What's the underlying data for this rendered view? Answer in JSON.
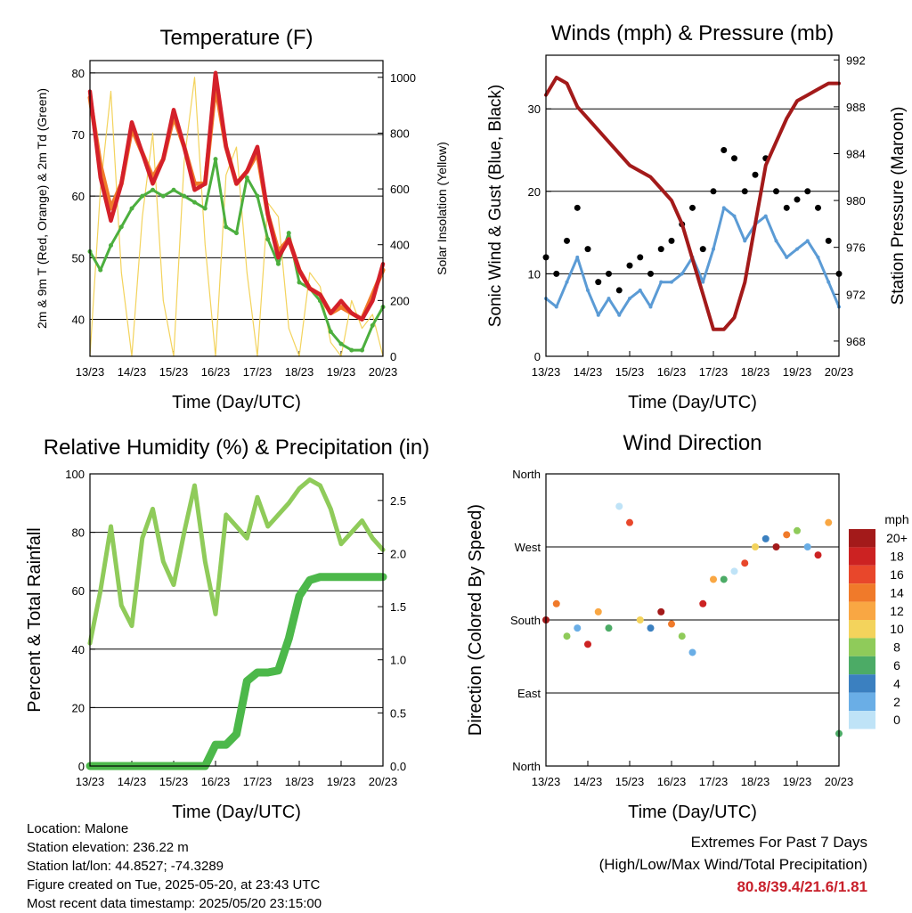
{
  "x_ticks": [
    "13/23",
    "14/23",
    "15/23",
    "16/23",
    "17/23",
    "18/23",
    "19/23",
    "20/23"
  ],
  "x_label": "Time (Day/UTC)",
  "chart_data": [
    {
      "type": "line",
      "title": "Temperature (F)",
      "xlabel": "Time (Day/UTC)",
      "ylabel": "2m & 9m T (Red, Orange) & 2m Td (Green)",
      "ylabel_right": "Solar Insolation (Yellow)",
      "ylim": [
        34,
        82
      ],
      "ylim_right": [
        0,
        1060
      ],
      "yticks": [
        40,
        50,
        60,
        70,
        80
      ],
      "yticks_right": [
        0,
        200,
        400,
        600,
        800,
        1000
      ],
      "x": [
        0,
        0.25,
        0.5,
        0.75,
        1,
        1.25,
        1.5,
        1.75,
        2,
        2.25,
        2.5,
        2.75,
        3,
        3.25,
        3.5,
        3.75,
        4,
        4.25,
        4.5,
        4.75,
        5,
        5.25,
        5.5,
        5.75,
        6,
        6.25,
        6.5,
        6.75,
        7
      ],
      "series": [
        {
          "color": "#d4202a",
          "values": [
            77,
            63,
            56,
            62,
            72,
            67,
            62,
            66,
            74,
            68,
            61,
            62,
            80,
            68,
            62,
            64,
            68,
            57,
            50,
            53,
            48,
            45,
            44,
            41,
            43,
            41,
            40,
            43,
            49
          ]
        },
        {
          "color": "#f07a2a",
          "values": [
            76,
            65,
            58,
            62,
            71,
            67,
            63,
            66,
            73,
            68,
            62,
            62,
            78,
            68,
            62,
            64,
            67,
            57,
            51,
            53,
            48,
            45,
            44,
            41,
            42,
            41,
            40,
            44,
            48
          ]
        },
        {
          "color": "#4caf3e",
          "values": [
            51,
            48,
            52,
            55,
            58,
            60,
            61,
            60,
            61,
            60,
            59,
            58,
            66,
            55,
            54,
            63,
            60,
            53,
            49,
            54,
            46,
            45,
            43,
            38,
            36,
            35,
            35,
            39,
            42
          ]
        },
        {
          "color": "#f3d35c",
          "values": [
            0,
            600,
            950,
            300,
            0,
            500,
            800,
            200,
            0,
            700,
            1000,
            400,
            0,
            650,
            750,
            300,
            0,
            550,
            500,
            100,
            0,
            300,
            250,
            50,
            0,
            200,
            100,
            150,
            0
          ]
        }
      ]
    },
    {
      "type": "scatter",
      "title": "Winds (mph) & Pressure (mb)",
      "xlabel": "Time (Day/UTC)",
      "ylabel": "Sonic Wind & Gust (Blue, Black)",
      "ylabel_right": "Station Pressure (Maroon)",
      "ylim": [
        0,
        36.5
      ],
      "ylim_right": [
        966.7,
        992.4
      ],
      "yticks": [
        0,
        10,
        20,
        30
      ],
      "yticks_right": [
        968,
        972,
        976,
        980,
        984,
        988,
        992
      ],
      "x": [
        0,
        0.25,
        0.5,
        0.75,
        1,
        1.25,
        1.5,
        1.75,
        2,
        2.25,
        2.5,
        2.75,
        3,
        3.25,
        3.5,
        3.75,
        4,
        4.25,
        4.5,
        4.75,
        5,
        5.25,
        5.5,
        5.75,
        6,
        6.25,
        6.5,
        6.75,
        7
      ],
      "series": [
        {
          "color": "#000000",
          "values": [
            12,
            10,
            14,
            18,
            13,
            9,
            10,
            8,
            11,
            12,
            10,
            13,
            14,
            16,
            18,
            13,
            20,
            25,
            24,
            20,
            22,
            24,
            20,
            18,
            19,
            20,
            18,
            14,
            10
          ]
        },
        {
          "color": "#5b9bd5",
          "values": [
            7,
            6,
            9,
            12,
            8,
            5,
            7,
            5,
            7,
            8,
            6,
            9,
            9,
            10,
            12,
            9,
            13,
            18,
            17,
            14,
            16,
            17,
            14,
            12,
            13,
            14,
            12,
            9,
            6
          ]
        },
        {
          "color": "#a31a1a",
          "values": [
            989,
            990.5,
            990,
            988,
            987,
            986,
            985,
            984,
            983,
            982.5,
            982,
            981,
            980,
            978,
            975,
            972,
            969,
            969,
            970,
            973,
            978,
            983,
            985,
            987,
            988.5,
            989,
            989.5,
            990,
            990
          ]
        }
      ]
    },
    {
      "type": "line",
      "title": "Relative Humidity (%) & Precipitation (in)",
      "xlabel": "Time (Day/UTC)",
      "ylabel": "Percent & Total Rainfall",
      "ylim": [
        0,
        100
      ],
      "ylim_right": [
        0,
        2.75
      ],
      "yticks": [
        0,
        20,
        40,
        60,
        80,
        100
      ],
      "yticks_right": [
        0.0,
        0.5,
        1.0,
        1.5,
        2.0,
        2.5
      ],
      "x": [
        0,
        0.25,
        0.5,
        0.75,
        1,
        1.25,
        1.5,
        1.75,
        2,
        2.25,
        2.5,
        2.75,
        3,
        3.25,
        3.5,
        3.75,
        4,
        4.25,
        4.5,
        4.75,
        5,
        5.25,
        5.5,
        5.75,
        6,
        6.25,
        6.5,
        6.75,
        7
      ],
      "series": [
        {
          "color": "#8fcb5a",
          "values": [
            42,
            60,
            82,
            55,
            48,
            78,
            88,
            70,
            62,
            80,
            96,
            70,
            52,
            86,
            82,
            78,
            92,
            82,
            86,
            90,
            95,
            98,
            96,
            88,
            76,
            80,
            84,
            78,
            74
          ]
        },
        {
          "color": "#4cb84a",
          "values": [
            0,
            0,
            0,
            0,
            0,
            0,
            0,
            0,
            0,
            0,
            0,
            0,
            0.2,
            0.2,
            0.3,
            0.8,
            0.88,
            0.88,
            0.9,
            1.2,
            1.6,
            1.75,
            1.78,
            1.78,
            1.78,
            1.78,
            1.78,
            1.78,
            1.78
          ]
        }
      ]
    },
    {
      "type": "scatter",
      "title": "Wind Direction",
      "xlabel": "Time (Day/UTC)",
      "ylabel": "Direction (Colored By Speed)",
      "yticks": [
        "North",
        "East",
        "South",
        "West",
        "North"
      ],
      "ylim": [
        0,
        360
      ],
      "x": [
        0,
        0.25,
        0.5,
        0.75,
        1,
        1.25,
        1.5,
        1.75,
        2,
        2.25,
        2.5,
        2.75,
        3,
        3.25,
        3.5,
        3.75,
        4,
        4.25,
        4.5,
        4.75,
        5,
        5.25,
        5.5,
        5.75,
        6,
        6.25,
        6.5,
        6.75,
        7
      ],
      "values": [
        180,
        200,
        160,
        170,
        150,
        190,
        170,
        320,
        300,
        180,
        170,
        190,
        175,
        160,
        140,
        200,
        230,
        230,
        240,
        250,
        270,
        280,
        270,
        285,
        290,
        270,
        260,
        300,
        40
      ],
      "colorbar": {
        "label": "mph",
        "ticks": [
          "20+",
          "18",
          "16",
          "14",
          "12",
          "10",
          "8",
          "6",
          "4",
          "2",
          "0"
        ],
        "colors": [
          "#a31a1a",
          "#cc2222",
          "#e8472b",
          "#f07a2a",
          "#f9a743",
          "#f3d35c",
          "#8fcb5a",
          "#4cab66",
          "#3b80c0",
          "#6aaee6",
          "#bfe3f7"
        ]
      }
    }
  ],
  "info": {
    "location": "Location: Malone",
    "elevation": "Station elevation: 236.22 m",
    "latlon": "Station lat/lon: 44.8527; -74.3289",
    "created": "Figure created on Tue, 2025-05-20, at 23:43 UTC",
    "timestamp": "Most recent data timestamp: 2025/05/20 23:15:00"
  },
  "extremes": {
    "line1": "Extremes For Past 7 Days",
    "line2": "(High/Low/Max Wind/Total Precipitation)",
    "values": "80.8/39.4/21.6/1.81"
  }
}
